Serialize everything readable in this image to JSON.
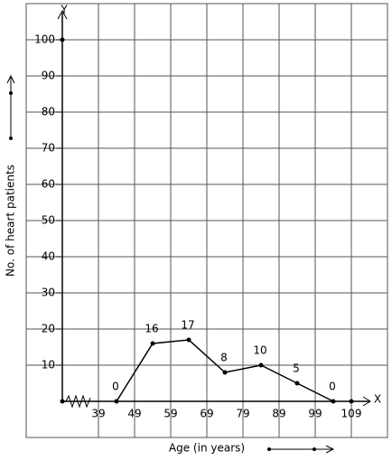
{
  "chart_data": {
    "type": "line",
    "x_label": "Age (in years)",
    "y_label": "No. of heart patients",
    "x_axis_name": "X",
    "y_axis_name": "Y",
    "x": [
      44,
      54,
      64,
      74,
      84,
      94,
      104
    ],
    "values": [
      0,
      16,
      17,
      8,
      10,
      5,
      0
    ],
    "color": "#000000",
    "xlim": [
      19,
      119
    ],
    "ylim": [
      -10,
      110
    ],
    "xticks": [
      39,
      49,
      59,
      69,
      79,
      89,
      99,
      109
    ],
    "yticks": [
      10,
      20,
      30,
      40,
      50,
      60,
      70,
      80,
      90,
      100
    ],
    "grid": true
  }
}
